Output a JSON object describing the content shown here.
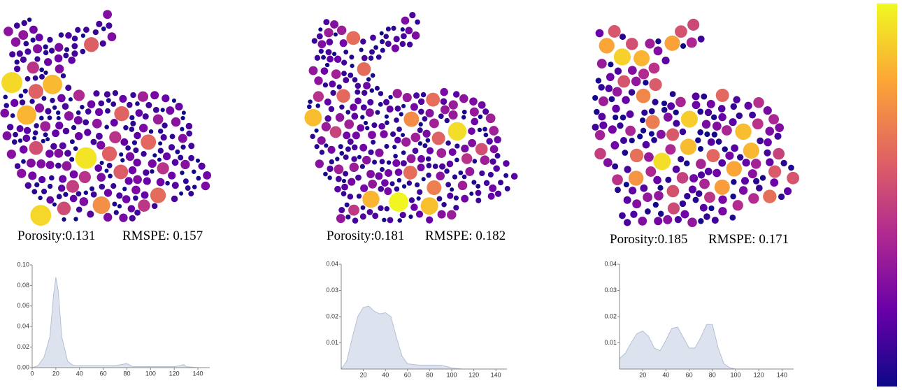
{
  "panels": [
    {
      "porosity": "Porosity:0.131",
      "rmspe": "RMSPE: 0.157"
    },
    {
      "porosity": "Porosity:0.181",
      "rmspe": "RMSPE: 0.182"
    },
    {
      "porosity": "Porosity:0.185",
      "rmspe": "RMSPE: 0.171"
    }
  ],
  "chart_data": [
    {
      "type": "area",
      "x": [
        0,
        5,
        10,
        15,
        18,
        20,
        22,
        25,
        30,
        35,
        40,
        50,
        60,
        70,
        75,
        80,
        85,
        90,
        100,
        120,
        125,
        128,
        130,
        140,
        150
      ],
      "values": [
        0,
        0.002,
        0.01,
        0.03,
        0.07,
        0.088,
        0.075,
        0.03,
        0.006,
        0.002,
        0.002,
        0.002,
        0.002,
        0.002,
        0.003,
        0.004,
        0.001,
        0.001,
        0.001,
        0.001,
        0.002,
        0.003,
        0.001,
        0,
        0
      ],
      "xlim": [
        0,
        150
      ],
      "ylim": [
        0,
        0.1
      ],
      "xticks": [
        0,
        20,
        40,
        60,
        80,
        100,
        120,
        140
      ],
      "yticks": [
        {
          "value": 0,
          "label": "0.00"
        },
        0.02,
        0.04,
        0.06,
        0.08,
        {
          "value": 0.1,
          "label": "0.10"
        }
      ],
      "color": "#dde3ee"
    },
    {
      "type": "area",
      "x": [
        0,
        5,
        10,
        15,
        20,
        25,
        30,
        35,
        40,
        45,
        50,
        55,
        60,
        70,
        80,
        90,
        95,
        100,
        110,
        150
      ],
      "values": [
        0,
        0.003,
        0.012,
        0.02,
        0.0235,
        0.024,
        0.022,
        0.021,
        0.0215,
        0.02,
        0.012,
        0.005,
        0.002,
        0.0015,
        0.0015,
        0.0015,
        0.001,
        0.0004,
        0,
        0
      ],
      "xlim": [
        0,
        150
      ],
      "ylim": [
        0,
        0.04
      ],
      "xticks": [
        20,
        40,
        60,
        80,
        100,
        120,
        140
      ],
      "yticks": [
        0.01,
        0.02,
        0.03,
        0.04
      ],
      "color": "#dde3ee"
    },
    {
      "type": "area",
      "x": [
        0,
        5,
        10,
        15,
        20,
        25,
        30,
        35,
        40,
        45,
        50,
        55,
        60,
        65,
        70,
        75,
        80,
        85,
        90,
        95,
        100,
        150
      ],
      "values": [
        0.004,
        0.006,
        0.01,
        0.0135,
        0.0145,
        0.0125,
        0.008,
        0.007,
        0.011,
        0.0155,
        0.016,
        0.012,
        0.008,
        0.008,
        0.012,
        0.017,
        0.017,
        0.008,
        0.002,
        0.0005,
        0,
        0
      ],
      "xlim": [
        0,
        150
      ],
      "ylim": [
        0,
        0.04
      ],
      "xticks": [
        20,
        40,
        60,
        80,
        100,
        120,
        140
      ],
      "yticks": [
        0.01,
        0.02,
        0.03,
        0.04
      ],
      "color": "#dde3ee"
    }
  ]
}
